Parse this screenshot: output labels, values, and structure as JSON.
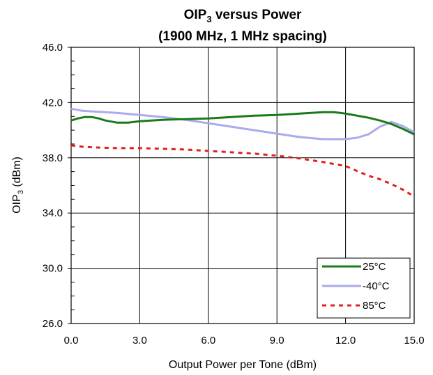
{
  "chart_data": {
    "type": "line",
    "title_main": "OIP",
    "title_sub": "3",
    "title_tail": " versus Power",
    "subtitle": "(1900 MHz, 1 MHz spacing)",
    "xlabel": "Output Power per Tone (dBm)",
    "ylabel_main": "OIP",
    "ylabel_sub": "3",
    "ylabel_tail": " (dBm)",
    "xlim": [
      0,
      15
    ],
    "ylim": [
      26,
      46
    ],
    "x_ticks": [
      0,
      3,
      6,
      9,
      12,
      15
    ],
    "y_ticks": [
      26,
      30,
      34,
      38,
      42,
      46
    ],
    "x_tick_labels": [
      "0.0",
      "3.0",
      "6.0",
      "9.0",
      "12.0",
      "15.0"
    ],
    "y_tick_labels": [
      "26.0",
      "30.0",
      "34.0",
      "38.0",
      "42.0",
      "46.0"
    ],
    "grid": true,
    "legend_position": "bottom-right",
    "series": [
      {
        "name": "25°C",
        "color": "#1a7a1a",
        "style": "solid",
        "x": [
          0,
          0.3,
          0.6,
          0.9,
          1.2,
          1.5,
          2,
          2.5,
          3,
          4,
          5,
          6,
          7,
          8,
          9,
          10,
          11,
          11.5,
          12,
          13,
          13.5,
          14,
          14.5,
          15
        ],
        "y": [
          40.7,
          40.85,
          40.95,
          40.95,
          40.85,
          40.7,
          40.55,
          40.55,
          40.65,
          40.75,
          40.8,
          40.85,
          40.95,
          41.05,
          41.1,
          41.2,
          41.3,
          41.3,
          41.2,
          40.9,
          40.7,
          40.45,
          40.1,
          39.7
        ]
      },
      {
        "name": "-40°C",
        "color": "#aaaaee",
        "style": "solid",
        "x": [
          0,
          0.5,
          1,
          2,
          3,
          4,
          5,
          6,
          7,
          8,
          9,
          10,
          11,
          12,
          12.5,
          13,
          13.5,
          14,
          14.5,
          15
        ],
        "y": [
          41.55,
          41.4,
          41.35,
          41.25,
          41.1,
          40.95,
          40.75,
          40.5,
          40.25,
          40,
          39.75,
          39.5,
          39.35,
          39.35,
          39.45,
          39.7,
          40.25,
          40.6,
          40.3,
          39.85
        ]
      },
      {
        "name": "85°C",
        "color": "#e02020",
        "style": "dashed",
        "x": [
          0,
          0.5,
          1,
          2,
          3,
          4,
          5,
          6,
          7,
          8,
          9,
          10,
          11,
          12,
          12.5,
          13,
          13.5,
          14,
          14.5,
          15
        ],
        "y": [
          38.9,
          38.8,
          38.75,
          38.7,
          38.7,
          38.65,
          38.6,
          38.5,
          38.4,
          38.3,
          38.15,
          37.95,
          37.7,
          37.4,
          37.05,
          36.7,
          36.45,
          36.1,
          35.7,
          35.2
        ]
      }
    ]
  }
}
